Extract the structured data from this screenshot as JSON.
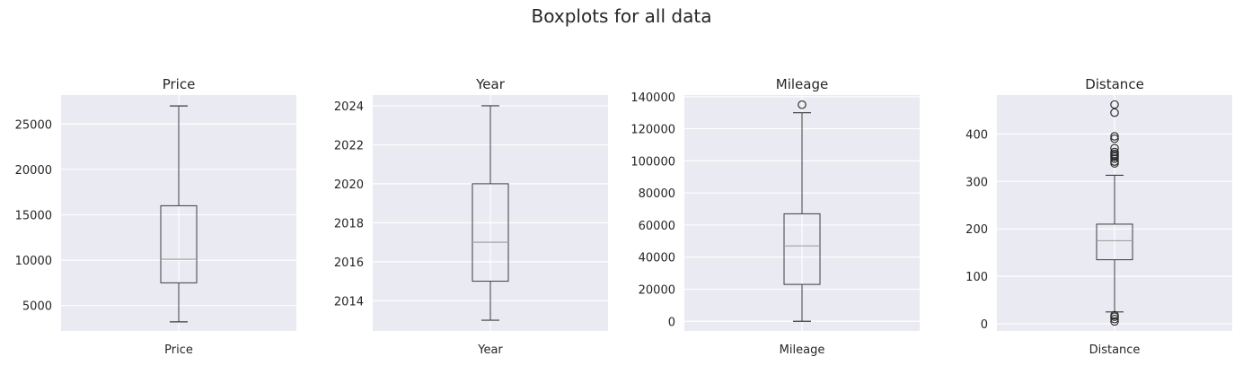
{
  "figure": {
    "title": "Boxplots for all data"
  },
  "chart_data": [
    {
      "type": "boxplot",
      "title": "Price",
      "categories": [
        "Price"
      ],
      "ylim": [
        2200,
        28200
      ],
      "yticks": [
        5000,
        10000,
        15000,
        20000,
        25000
      ],
      "ytick_labels": [
        "5000",
        "10000",
        "15000",
        "20000",
        "25000"
      ],
      "stats": {
        "whislo": 3200,
        "q1": 7500,
        "med": 10100,
        "q3": 16000,
        "whishi": 27000
      },
      "fliers": [],
      "grid": true
    },
    {
      "type": "boxplot",
      "title": "Year",
      "categories": [
        "Year"
      ],
      "ylim": [
        2012.45,
        2024.55
      ],
      "yticks": [
        2014,
        2016,
        2018,
        2020,
        2022,
        2024
      ],
      "ytick_labels": [
        "2014",
        "2016",
        "2018",
        "2020",
        "2022",
        "2024"
      ],
      "stats": {
        "whislo": 2013,
        "q1": 2015,
        "med": 2017,
        "q3": 2020,
        "whishi": 2024
      },
      "fliers": [],
      "grid": true
    },
    {
      "type": "boxplot",
      "title": "Mileage",
      "categories": [
        "Mileage"
      ],
      "ylim": [
        -6000,
        141000
      ],
      "yticks": [
        0,
        20000,
        40000,
        60000,
        80000,
        100000,
        120000,
        140000
      ],
      "ytick_labels": [
        "0",
        "20000",
        "40000",
        "60000",
        "80000",
        "100000",
        "120000",
        "140000"
      ],
      "stats": {
        "whislo": 0,
        "q1": 23000,
        "med": 47000,
        "q3": 67000,
        "whishi": 130000
      },
      "fliers": [
        135000
      ],
      "grid": true
    },
    {
      "type": "boxplot",
      "title": "Distance",
      "categories": [
        "Distance"
      ],
      "ylim": [
        -15,
        482
      ],
      "yticks": [
        0,
        100,
        200,
        300,
        400
      ],
      "ytick_labels": [
        "0",
        "100",
        "200",
        "300",
        "400"
      ],
      "stats": {
        "whislo": 25,
        "q1": 135,
        "med": 175,
        "q3": 210,
        "whishi": 313
      },
      "fliers": [
        5,
        10,
        15,
        18,
        338,
        342,
        348,
        352,
        355,
        358,
        362,
        370,
        390,
        395,
        445,
        462
      ],
      "grid": true
    }
  ]
}
